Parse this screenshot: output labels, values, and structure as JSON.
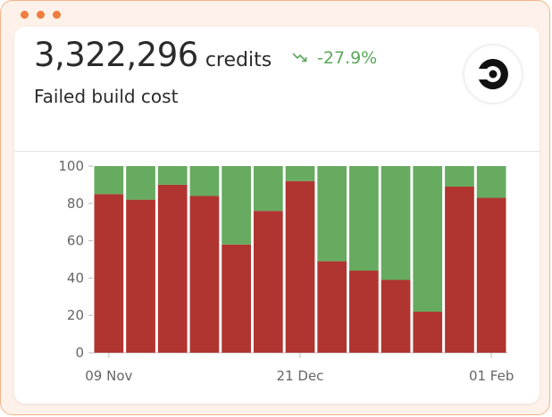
{
  "card": {
    "metric_value": "3,322,296",
    "metric_unit": "credits",
    "trend_value": "-27.9%",
    "trend_icon": "trending-down-icon",
    "label": "Failed build cost",
    "logo_icon": "circleci-logo-icon"
  },
  "colors": {
    "failed": "#b03530",
    "passed": "#66ab5f",
    "trend": "#5aa75a",
    "accent": "#f07d3d"
  },
  "chart_data": {
    "type": "bar",
    "stacked": true,
    "y_ticks": [
      0,
      20,
      40,
      60,
      80,
      100
    ],
    "ylim": [
      0,
      100
    ],
    "x_tick_labels": [
      "09 Nov",
      "21 Dec",
      "01 Feb"
    ],
    "x_tick_label_bar_index": [
      0,
      6,
      12
    ],
    "series": [
      {
        "values": [
          85,
          82,
          90,
          84,
          58,
          76,
          92,
          49,
          44,
          39,
          22,
          89,
          83
        ]
      },
      {
        "values": [
          15,
          18,
          10,
          16,
          42,
          24,
          8,
          51,
          56,
          61,
          78,
          11,
          17
        ]
      }
    ],
    "grid": false,
    "legend": "none"
  }
}
